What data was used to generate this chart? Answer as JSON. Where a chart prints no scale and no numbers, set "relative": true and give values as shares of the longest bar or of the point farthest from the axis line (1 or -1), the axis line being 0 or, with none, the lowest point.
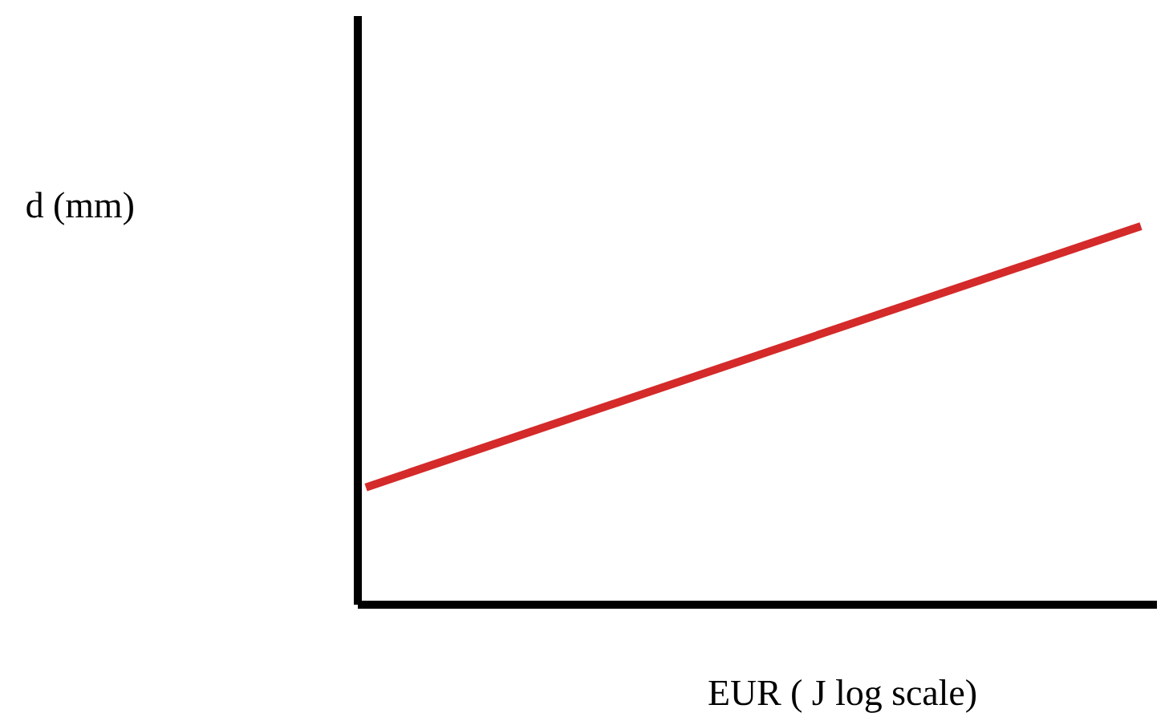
{
  "chart_data": {
    "type": "line",
    "xlabel": "EUR ( J log scale)",
    "ylabel": "d   (mm)",
    "categories": [
      null,
      null
    ],
    "relative": true,
    "series": [
      {
        "color": "#d42a2a",
        "values": [
          0.31,
          1
        ]
      }
    ],
    "marker": "none",
    "line_style": "solid",
    "ref_lines": [
      {
        "axis": "y",
        "value": 0,
        "color": "#000000",
        "line_style": "solid"
      }
    ]
  }
}
